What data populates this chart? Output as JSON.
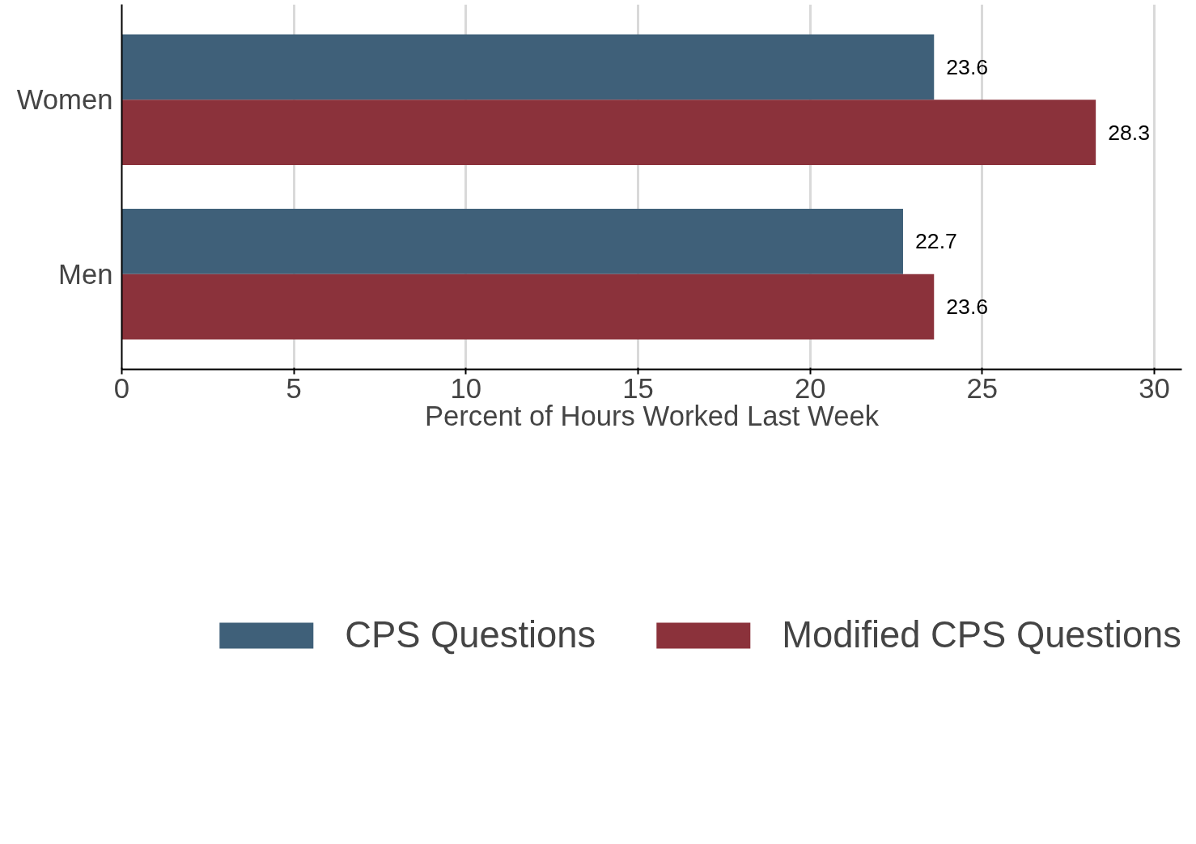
{
  "chart_data": {
    "type": "bar",
    "orientation": "horizontal",
    "categories": [
      "Women",
      "Men"
    ],
    "series": [
      {
        "name": "CPS Questions",
        "color": "#3f6079",
        "values": [
          23.6,
          22.7
        ]
      },
      {
        "name": "Modified CPS Questions",
        "color": "#8b323b",
        "values": [
          28.3,
          23.6
        ]
      }
    ],
    "xlabel": "Percent of Hours Worked Last Week",
    "xlim": [
      0,
      30.8
    ],
    "xticks": [
      0,
      5,
      10,
      15,
      20,
      25,
      30
    ],
    "grid": "x",
    "legend": "bottom",
    "data_labels": true
  }
}
